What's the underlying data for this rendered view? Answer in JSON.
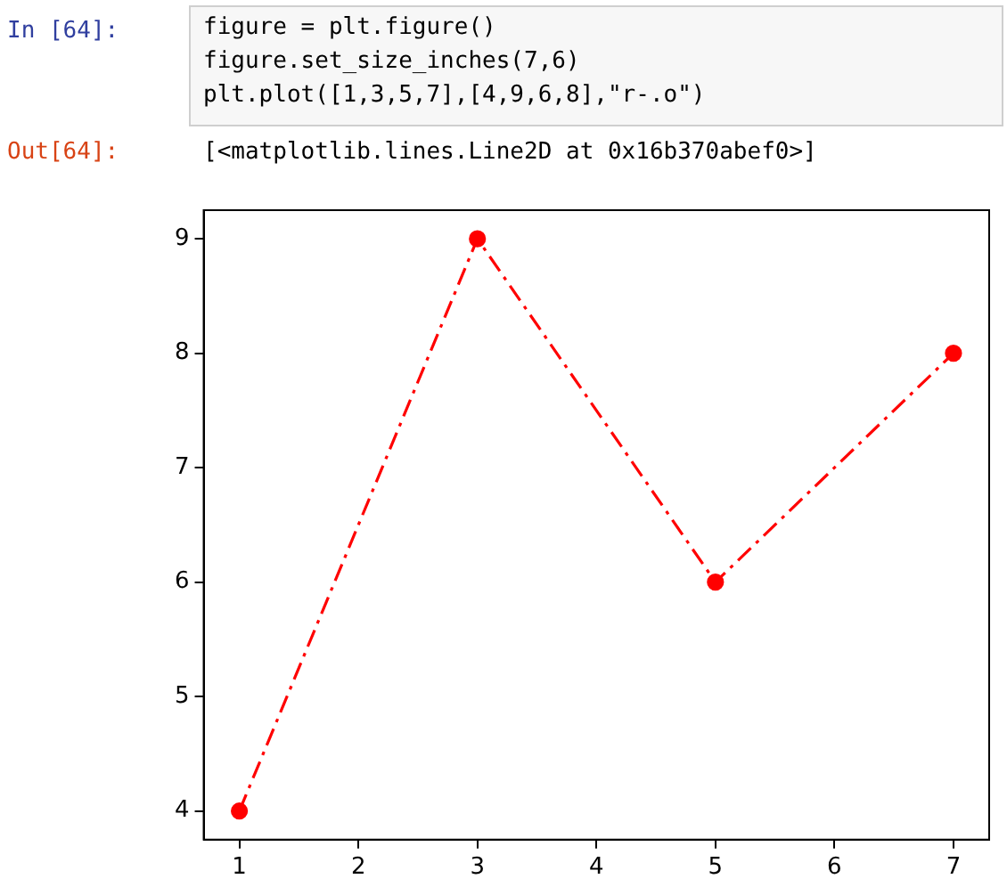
{
  "chart_data": {
    "type": "line",
    "annotations": [
      "In [64]:",
      "figure = plt.figure()",
      "figure.set_size_inches(7,6)",
      "plt.plot([1,3,5,7],[4,9,6,8],\"r-.o\")",
      "Out[64]:",
      "[<matplotlib.lines.Line2D at 0x16b370abef0>]"
    ],
    "x": [
      1,
      3,
      5,
      7
    ],
    "series": [
      {
        "color": "#ff0000",
        "values": [
          4,
          9,
          6,
          8
        ]
      }
    ],
    "xlim": [
      0.7,
      7.3
    ],
    "ylim": [
      3.75,
      9.25
    ],
    "xticks": [
      1,
      2,
      3,
      4,
      5,
      6,
      7
    ],
    "yticks": [
      4,
      5,
      6,
      7,
      8,
      9
    ],
    "grid": false,
    "legend": false,
    "marker": "circle",
    "line_style": "dashed"
  }
}
